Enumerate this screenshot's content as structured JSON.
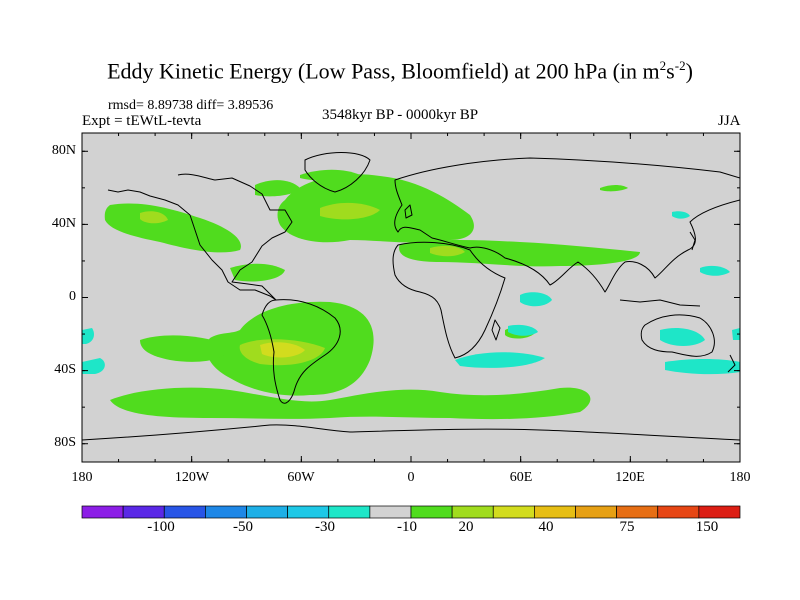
{
  "title": {
    "main": "Eddy Kinetic Energy (Low Pass, Bloomfield) at 200 hPa (in m",
    "sup1": "2",
    "mid": "s",
    "sup2": "-2",
    "end": ")"
  },
  "stats": "rmsd= 8.89738 diff= 3.89536",
  "expt": "Expt = tEWtL-tevta",
  "period": "3548kyr BP - 0000kyr BP",
  "season": "JJA",
  "y_axis": {
    "labels": [
      "80N",
      "40N",
      "0",
      "40S",
      "80S"
    ]
  },
  "x_axis": {
    "labels": [
      "180",
      "120W",
      "60W",
      "0",
      "60E",
      "120E",
      "180"
    ]
  },
  "colorbar": {
    "colors": [
      "#8c1ee6",
      "#5a28e6",
      "#2855e6",
      "#1e87e6",
      "#1eafe6",
      "#1ec8e6",
      "#1ee6c8",
      "#d2d2d2",
      "#50dc1e",
      "#a0dc1e",
      "#d2dc1e",
      "#e6be14",
      "#e6a014",
      "#e66e14",
      "#e64614",
      "#dc1e14"
    ],
    "labels": [
      "-100",
      "-50",
      "-30",
      "-10",
      "20",
      "40",
      "75",
      "150"
    ]
  },
  "map_colors": {
    "background": "#d2d2d2",
    "light_green": "#50dc1e",
    "yellow_green": "#a0dc1e",
    "khaki": "#d2dc1e",
    "cyan": "#1ee6c8",
    "coast": "#000000"
  }
}
